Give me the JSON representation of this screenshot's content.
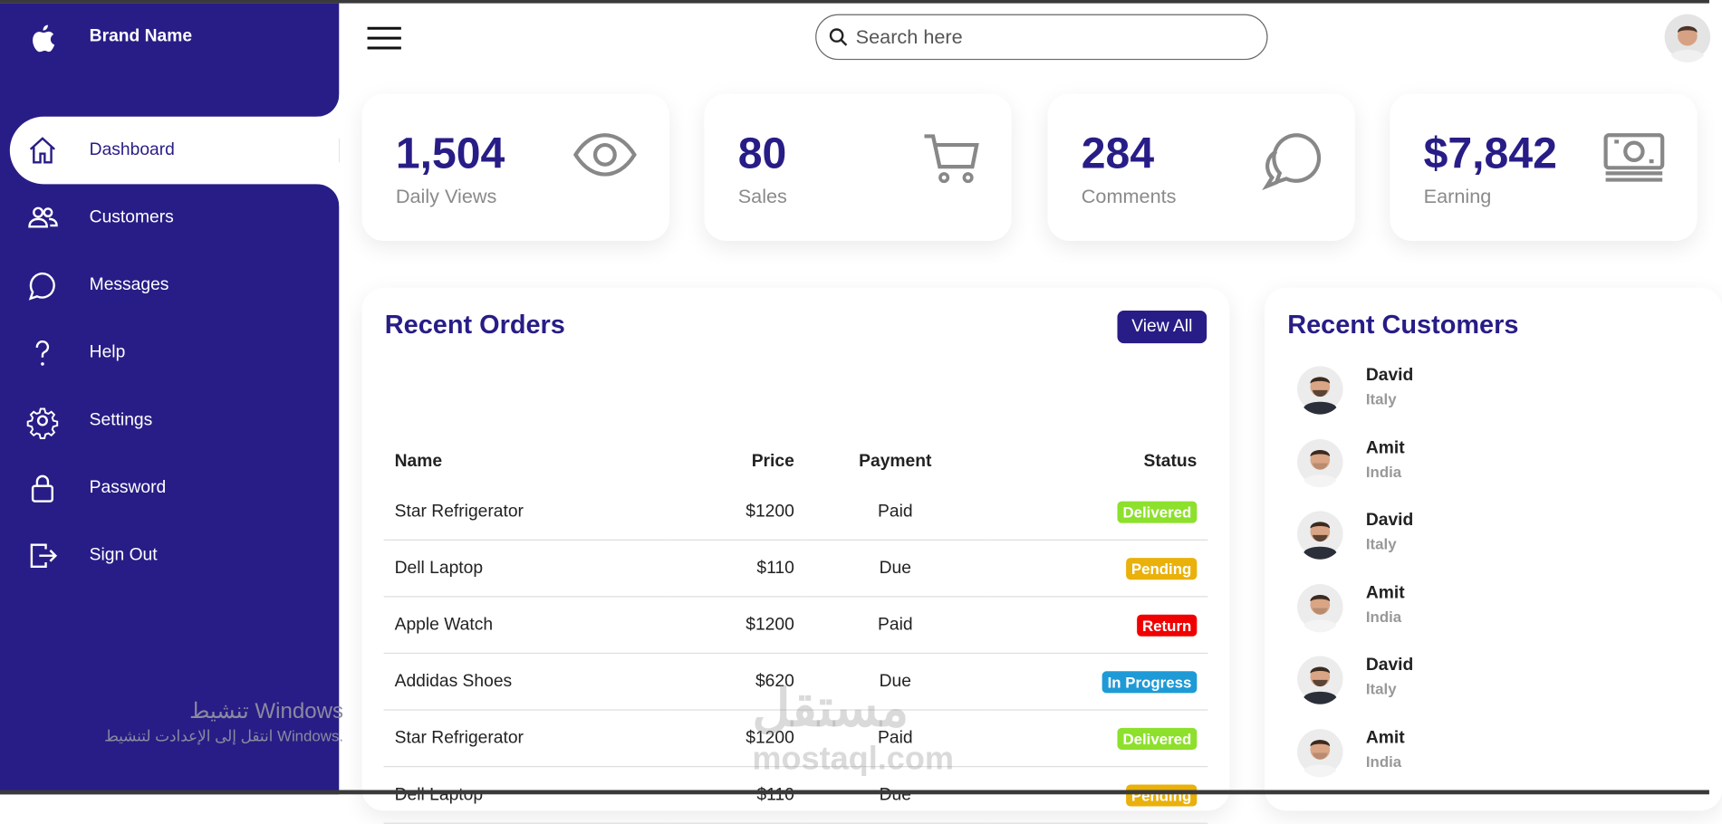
{
  "sidebar": {
    "brand": "Brand Name",
    "nav": [
      "Dashboard",
      "Customers",
      "Messages",
      "Help",
      "Settings",
      "Password",
      "Sign Out"
    ]
  },
  "topbar": {
    "search_placeholder": "Search here"
  },
  "cards": [
    {
      "value": "1,504",
      "label": "Daily Views"
    },
    {
      "value": "80",
      "label": "Sales"
    },
    {
      "value": "284",
      "label": "Comments"
    },
    {
      "value": "$7,842",
      "label": "Earning"
    }
  ],
  "recent_orders": {
    "title": "Recent Orders",
    "button": "View All",
    "columns": [
      "Name",
      "Price",
      "Payment",
      "Status"
    ],
    "rows": [
      {
        "name": "Star Refrigerator",
        "price": "$1200",
        "payment": "Paid",
        "status": "Delivered",
        "status_color": "#8de02c"
      },
      {
        "name": "Dell Laptop",
        "price": "$110",
        "payment": "Due",
        "status": "Pending",
        "status_color": "#e9b10a"
      },
      {
        "name": "Apple Watch",
        "price": "$1200",
        "payment": "Paid",
        "status": "Return",
        "status_color": "#f00000"
      },
      {
        "name": "Addidas Shoes",
        "price": "$620",
        "payment": "Due",
        "status": "In Progress",
        "status_color": "#1e9ad6"
      },
      {
        "name": "Star Refrigerator",
        "price": "$1200",
        "payment": "Paid",
        "status": "Delivered",
        "status_color": "#8de02c"
      },
      {
        "name": "Dell Laptop",
        "price": "$110",
        "payment": "Due",
        "status": "Pending",
        "status_color": "#e9b10a"
      }
    ]
  },
  "recent_customers": {
    "title": "Recent Customers",
    "items": [
      {
        "name": "David",
        "country": "Italy"
      },
      {
        "name": "Amit",
        "country": "India"
      },
      {
        "name": "David",
        "country": "Italy"
      },
      {
        "name": "Amit",
        "country": "India"
      },
      {
        "name": "David",
        "country": "Italy"
      },
      {
        "name": "Amit",
        "country": "India"
      }
    ]
  },
  "watermarks": {
    "windows_title": "تنشيط Windows",
    "windows_text": "انتقل إلى الإعدادت لتنشيط Windows.",
    "site_logo": "مستقل",
    "site_url": "mostaql.com"
  }
}
